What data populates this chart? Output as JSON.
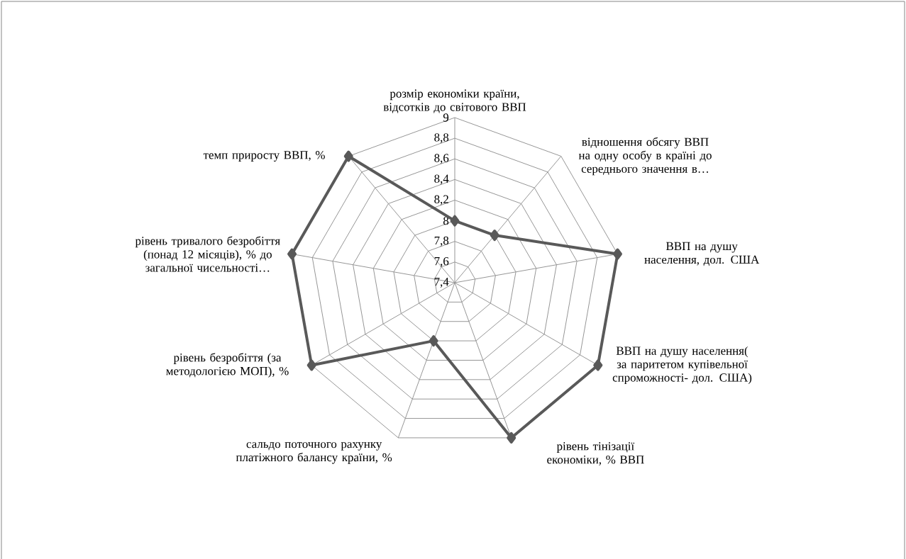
{
  "chart_data": {
    "type": "radar",
    "categories": [
      "розмір економіки країни, відсотків до світового ВВП",
      "відношення обсягу ВВП на одну особу в країні до середнього значення в…",
      "ВВП на душу населення, дол. США",
      "ВВП на душу населення( за паритетом купівельної спроможності- дол. США)",
      "рівень тінізації економіки, % ВВП",
      "сальдо поточного рахунку платіжного балансу країни, %",
      "рівень безробіття (за методологією МОП), %",
      "рівень тривалого безробіття (понад 12 місяців), % до загальної чисельності…",
      "темп приросту ВВП, %"
    ],
    "series": [
      {
        "color": "#595959",
        "values": [
          8,
          8,
          9,
          9,
          9,
          8,
          9,
          9,
          9
        ]
      }
    ],
    "ylim": [
      7.4,
      9
    ],
    "yticks": [
      {
        "value": 7.4,
        "label": "7,4"
      },
      {
        "value": 7.6,
        "label": "7,6"
      },
      {
        "value": 7.8,
        "label": "7,8"
      },
      {
        "value": 8,
        "label": "8"
      },
      {
        "value": 8.2,
        "label": "8,2"
      },
      {
        "value": 8.4,
        "label": "8,4"
      },
      {
        "value": 8.6,
        "label": "8,6"
      },
      {
        "value": 8.8,
        "label": "8,8"
      },
      {
        "value": 9,
        "label": "9"
      }
    ],
    "grid": true,
    "marker": "diamond",
    "line_style": "solid"
  }
}
